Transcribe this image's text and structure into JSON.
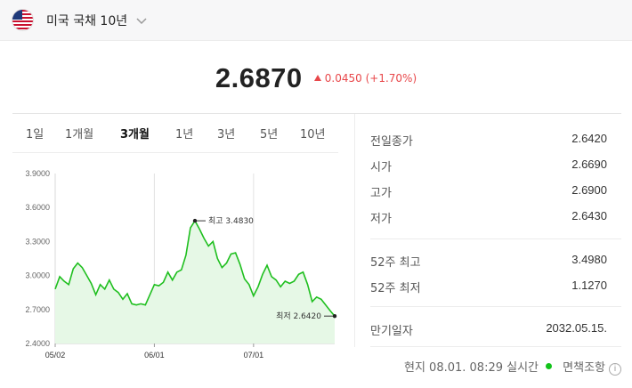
{
  "header": {
    "title": "미국 국채 10년",
    "flag_icon": "us-flag-icon",
    "dropdown_icon": "chevron-down-icon"
  },
  "quote": {
    "price": "2.6870",
    "change": "0.0450",
    "change_pct": "(+1.70%)",
    "direction": "up",
    "up_color": "#e8474a"
  },
  "periods": [
    {
      "label": "1일"
    },
    {
      "label": "1개월"
    },
    {
      "label": "3개월",
      "active": true
    },
    {
      "label": "1년"
    },
    {
      "label": "3년"
    },
    {
      "label": "5년"
    },
    {
      "label": "10년"
    }
  ],
  "stats": {
    "prev_close": {
      "label": "전일종가",
      "value": "2.6420"
    },
    "open": {
      "label": "시가",
      "value": "2.6690"
    },
    "high": {
      "label": "고가",
      "value": "2.6900"
    },
    "low": {
      "label": "저가",
      "value": "2.6430"
    },
    "high_52w": {
      "label": "52주 최고",
      "value": "3.4980"
    },
    "low_52w": {
      "label": "52주 최저",
      "value": "1.1270"
    },
    "maturity": {
      "label": "만기일자",
      "value": "2032.05.15."
    }
  },
  "footer": {
    "timestamp": "현지 08.01. 08:29 실시간",
    "disclaimer": "면책조항"
  },
  "chart_data": {
    "type": "area",
    "ylim": [
      2.4,
      3.9
    ],
    "yticks": [
      "3.9000",
      "3.6000",
      "3.3000",
      "3.0000",
      "2.7000",
      "2.4000"
    ],
    "xticks": [
      "05/02",
      "06/01",
      "07/01"
    ],
    "line_color": "#1fbf1f",
    "fill_color": "#e6f8e6",
    "high_label": "최고 3.4830",
    "low_label": "최저 2.6420",
    "high_value": 3.483,
    "low_value": 2.642,
    "series": [
      {
        "values": [
          2.88,
          2.99,
          2.95,
          2.92,
          3.06,
          3.11,
          3.07,
          3.0,
          2.93,
          2.83,
          2.92,
          2.88,
          2.96,
          2.88,
          2.85,
          2.79,
          2.84,
          2.75,
          2.74,
          2.75,
          2.74,
          2.83,
          2.92,
          2.91,
          2.94,
          3.03,
          2.96,
          3.03,
          3.05,
          3.18,
          3.42,
          3.483,
          3.41,
          3.33,
          3.26,
          3.3,
          3.15,
          3.07,
          3.11,
          3.19,
          3.2,
          3.1,
          2.97,
          2.92,
          2.82,
          2.9,
          3.01,
          3.09,
          2.99,
          2.96,
          2.9,
          2.95,
          2.93,
          2.95,
          3.01,
          3.03,
          2.92,
          2.77,
          2.81,
          2.79,
          2.74,
          2.69,
          2.642
        ]
      }
    ]
  }
}
